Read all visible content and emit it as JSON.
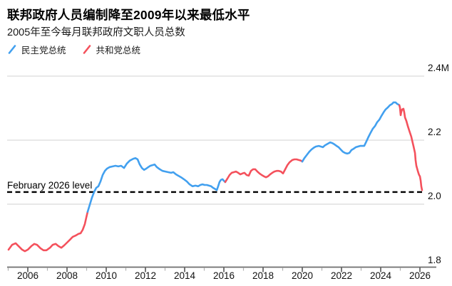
{
  "header": {
    "title": "联邦政府人员编制降至2009年以来最低水平",
    "subtitle": "2005年至今每月联邦政府文职人员总数"
  },
  "legend": {
    "items": [
      {
        "label": "民主党总统",
        "color_key": "democrat"
      },
      {
        "label": "共和党总统",
        "color_key": "republican"
      }
    ]
  },
  "annotation": {
    "label": "February 2026 level",
    "value": 2.038
  },
  "colors": {
    "democrat": "#42a0ef",
    "republican": "#f4515c",
    "grid": "#d9d9d9",
    "axis": "#6e6e6e",
    "tick_major": "#555555",
    "tick_minor": "#b0b0b0",
    "text": "#111111",
    "dashed_line": "#000000"
  },
  "chart_data": {
    "type": "line",
    "title": "2005年至今每月联邦政府文职人员总数",
    "unit": "millions of employees",
    "x_axis": {
      "min": 2005,
      "max": 2026.6,
      "tick_years": [
        2005,
        2006,
        2007,
        2008,
        2009,
        2010,
        2011,
        2012,
        2013,
        2014,
        2015,
        2016,
        2017,
        2018,
        2019,
        2020,
        2021,
        2022,
        2023,
        2024,
        2025,
        2026
      ],
      "label_years": [
        "2006",
        "2008",
        "2010",
        "2012",
        "2014",
        "2016",
        "2018",
        "2020",
        "2022",
        "2024",
        "2026"
      ]
    },
    "y_axis": {
      "min": 1.8,
      "max": 2.4,
      "gridline_values": [
        2.4,
        2.2,
        2.0
      ],
      "labels": [
        {
          "text": "2.4M",
          "value": 2.4
        },
        {
          "text": "2.2",
          "value": 2.2
        },
        {
          "text": "2.0",
          "value": 2.0
        },
        {
          "text": "1.8",
          "value": 1.8
        }
      ]
    },
    "legend_position": "top-left",
    "grid": true,
    "series": [
      {
        "name": "共和党总统",
        "color_key": "republican",
        "points": [
          [
            2005.02,
            1.858
          ],
          [
            2005.2,
            1.873
          ],
          [
            2005.38,
            1.878
          ],
          [
            2005.56,
            1.867
          ],
          [
            2005.71,
            1.858
          ],
          [
            2005.85,
            1.853
          ],
          [
            2006.0,
            1.858
          ],
          [
            2006.18,
            1.869
          ],
          [
            2006.33,
            1.876
          ],
          [
            2006.47,
            1.873
          ],
          [
            2006.65,
            1.862
          ],
          [
            2006.8,
            1.856
          ],
          [
            2006.95,
            1.856
          ],
          [
            2007.13,
            1.864
          ],
          [
            2007.27,
            1.873
          ],
          [
            2007.42,
            1.876
          ],
          [
            2007.56,
            1.869
          ],
          [
            2007.71,
            1.864
          ],
          [
            2007.85,
            1.871
          ],
          [
            2008.0,
            1.88
          ],
          [
            2008.15,
            1.889
          ],
          [
            2008.29,
            1.898
          ],
          [
            2008.44,
            1.902
          ],
          [
            2008.58,
            1.907
          ],
          [
            2008.69,
            1.909
          ],
          [
            2008.8,
            1.92
          ],
          [
            2008.91,
            1.938
          ],
          [
            2008.98,
            1.958
          ],
          [
            2009.05,
            1.976
          ]
        ]
      },
      {
        "name": "民主党总统",
        "color_key": "democrat",
        "points": [
          [
            2009.05,
            1.976
          ],
          [
            2009.16,
            1.998
          ],
          [
            2009.27,
            2.02
          ],
          [
            2009.38,
            2.038
          ],
          [
            2009.49,
            2.051
          ],
          [
            2009.6,
            2.056
          ],
          [
            2009.71,
            2.071
          ],
          [
            2009.82,
            2.091
          ],
          [
            2009.93,
            2.104
          ],
          [
            2010.04,
            2.111
          ],
          [
            2010.18,
            2.116
          ],
          [
            2010.33,
            2.118
          ],
          [
            2010.47,
            2.12
          ],
          [
            2010.62,
            2.118
          ],
          [
            2010.76,
            2.12
          ],
          [
            2010.91,
            2.113
          ],
          [
            2011.05,
            2.127
          ],
          [
            2011.2,
            2.136
          ],
          [
            2011.38,
            2.142
          ],
          [
            2011.49,
            2.144
          ],
          [
            2011.6,
            2.14
          ],
          [
            2011.71,
            2.124
          ],
          [
            2011.82,
            2.113
          ],
          [
            2011.93,
            2.107
          ],
          [
            2012.04,
            2.111
          ],
          [
            2012.15,
            2.116
          ],
          [
            2012.25,
            2.12
          ],
          [
            2012.36,
            2.122
          ],
          [
            2012.47,
            2.124
          ],
          [
            2012.58,
            2.116
          ],
          [
            2012.73,
            2.109
          ],
          [
            2012.87,
            2.104
          ],
          [
            2013.02,
            2.102
          ],
          [
            2013.16,
            2.1
          ],
          [
            2013.31,
            2.098
          ],
          [
            2013.42,
            2.1
          ],
          [
            2013.56,
            2.093
          ],
          [
            2013.67,
            2.089
          ],
          [
            2013.82,
            2.084
          ],
          [
            2013.96,
            2.078
          ],
          [
            2014.11,
            2.071
          ],
          [
            2014.25,
            2.062
          ],
          [
            2014.4,
            2.056
          ],
          [
            2014.55,
            2.058
          ],
          [
            2014.69,
            2.056
          ],
          [
            2014.8,
            2.06
          ],
          [
            2014.91,
            2.062
          ],
          [
            2015.02,
            2.06
          ],
          [
            2015.13,
            2.06
          ],
          [
            2015.24,
            2.058
          ],
          [
            2015.35,
            2.056
          ],
          [
            2015.45,
            2.051
          ],
          [
            2015.56,
            2.047
          ],
          [
            2015.64,
            2.044
          ],
          [
            2015.71,
            2.056
          ],
          [
            2015.78,
            2.069
          ],
          [
            2015.85,
            2.076
          ],
          [
            2015.93,
            2.078
          ],
          [
            2016.0,
            2.073
          ],
          [
            2016.07,
            2.069
          ]
        ]
      },
      {
        "name": "共和党总统",
        "color_key": "republican",
        "points": [
          [
            2016.07,
            2.069
          ],
          [
            2016.18,
            2.08
          ],
          [
            2016.29,
            2.091
          ],
          [
            2016.4,
            2.098
          ],
          [
            2016.51,
            2.1
          ],
          [
            2016.62,
            2.102
          ],
          [
            2016.73,
            2.098
          ],
          [
            2016.84,
            2.093
          ],
          [
            2016.95,
            2.096
          ],
          [
            2017.05,
            2.098
          ],
          [
            2017.16,
            2.091
          ],
          [
            2017.27,
            2.089
          ],
          [
            2017.38,
            2.104
          ],
          [
            2017.49,
            2.109
          ],
          [
            2017.6,
            2.109
          ],
          [
            2017.71,
            2.102
          ],
          [
            2017.82,
            2.096
          ],
          [
            2017.93,
            2.091
          ],
          [
            2018.04,
            2.087
          ],
          [
            2018.15,
            2.084
          ],
          [
            2018.25,
            2.087
          ],
          [
            2018.36,
            2.093
          ],
          [
            2018.47,
            2.098
          ],
          [
            2018.58,
            2.102
          ],
          [
            2018.69,
            2.104
          ],
          [
            2018.8,
            2.104
          ],
          [
            2018.91,
            2.102
          ],
          [
            2019.02,
            2.096
          ],
          [
            2019.13,
            2.109
          ],
          [
            2019.24,
            2.122
          ],
          [
            2019.35,
            2.131
          ],
          [
            2019.49,
            2.138
          ],
          [
            2019.6,
            2.14
          ],
          [
            2019.71,
            2.14
          ],
          [
            2019.82,
            2.138
          ],
          [
            2019.93,
            2.136
          ],
          [
            2020.0,
            2.133
          ]
        ]
      },
      {
        "name": "民主党总统",
        "color_key": "democrat",
        "points": [
          [
            2020.0,
            2.133
          ],
          [
            2020.11,
            2.144
          ],
          [
            2020.22,
            2.153
          ],
          [
            2020.36,
            2.164
          ],
          [
            2020.47,
            2.171
          ],
          [
            2020.58,
            2.176
          ],
          [
            2020.69,
            2.18
          ],
          [
            2020.84,
            2.182
          ],
          [
            2020.95,
            2.18
          ],
          [
            2021.05,
            2.178
          ],
          [
            2021.16,
            2.184
          ],
          [
            2021.31,
            2.189
          ],
          [
            2021.42,
            2.193
          ],
          [
            2021.53,
            2.191
          ],
          [
            2021.64,
            2.187
          ],
          [
            2021.75,
            2.182
          ],
          [
            2021.85,
            2.178
          ],
          [
            2021.96,
            2.171
          ],
          [
            2022.07,
            2.164
          ],
          [
            2022.18,
            2.16
          ],
          [
            2022.29,
            2.158
          ],
          [
            2022.4,
            2.16
          ],
          [
            2022.51,
            2.169
          ],
          [
            2022.62,
            2.173
          ],
          [
            2022.73,
            2.178
          ],
          [
            2022.84,
            2.18
          ],
          [
            2022.95,
            2.182
          ],
          [
            2023.05,
            2.182
          ],
          [
            2023.16,
            2.182
          ],
          [
            2023.27,
            2.196
          ],
          [
            2023.38,
            2.211
          ],
          [
            2023.49,
            2.224
          ],
          [
            2023.6,
            2.236
          ],
          [
            2023.71,
            2.244
          ],
          [
            2023.82,
            2.256
          ],
          [
            2023.93,
            2.264
          ],
          [
            2024.04,
            2.276
          ],
          [
            2024.15,
            2.287
          ],
          [
            2024.25,
            2.296
          ],
          [
            2024.36,
            2.302
          ],
          [
            2024.47,
            2.309
          ],
          [
            2024.58,
            2.313
          ],
          [
            2024.65,
            2.318
          ],
          [
            2024.76,
            2.318
          ],
          [
            2024.84,
            2.313
          ],
          [
            2024.91,
            2.311
          ],
          [
            2024.95,
            2.309
          ]
        ]
      },
      {
        "name": "共和党总统",
        "color_key": "republican",
        "points": [
          [
            2024.95,
            2.309
          ],
          [
            2024.98,
            2.302
          ],
          [
            2025.02,
            2.278
          ],
          [
            2025.05,
            2.289
          ],
          [
            2025.09,
            2.296
          ],
          [
            2025.16,
            2.298
          ],
          [
            2025.2,
            2.287
          ],
          [
            2025.24,
            2.271
          ],
          [
            2025.31,
            2.26
          ],
          [
            2025.38,
            2.244
          ],
          [
            2025.45,
            2.231
          ],
          [
            2025.56,
            2.211
          ],
          [
            2025.6,
            2.2
          ],
          [
            2025.67,
            2.182
          ],
          [
            2025.75,
            2.16
          ],
          [
            2025.78,
            2.138
          ],
          [
            2025.82,
            2.12
          ],
          [
            2025.89,
            2.104
          ],
          [
            2025.93,
            2.096
          ],
          [
            2025.96,
            2.091
          ],
          [
            2026.0,
            2.087
          ],
          [
            2026.04,
            2.073
          ],
          [
            2026.07,
            2.056
          ],
          [
            2026.11,
            2.044
          ]
        ]
      }
    ]
  }
}
